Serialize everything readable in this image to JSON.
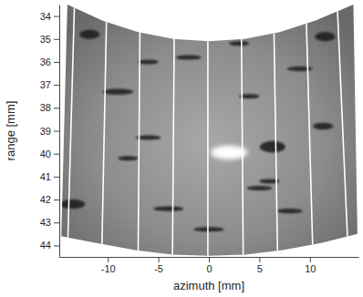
{
  "chart_data": {
    "type": "image",
    "xlabel": "azimuth [mm]",
    "ylabel": "range [mm]",
    "xlim": [
      -14.8,
      14.8
    ],
    "ylim": [
      33.5,
      44.5
    ],
    "xticks": [
      -10,
      -5,
      0,
      5,
      10
    ],
    "yticks": [
      34,
      35,
      36,
      37,
      38,
      39,
      40,
      41,
      42,
      43,
      44
    ],
    "sector": {
      "x": [
        -14.0,
        -10.5,
        -7.0,
        -3.5,
        0,
        3.5,
        7.0,
        10.5,
        14.3,
        14.7,
        11.0,
        7.3,
        3.6,
        0,
        -3.6,
        -7.3,
        -11.0,
        -14.6
      ],
      "y": [
        33.5,
        34.2,
        34.7,
        35.0,
        35.1,
        35.0,
        34.7,
        34.2,
        33.5,
        43.5,
        43.9,
        44.2,
        44.4,
        44.45,
        44.4,
        44.2,
        43.9,
        43.6
      ]
    },
    "beam_lines": {
      "x_top": [
        -13.3,
        -10.1,
        -6.8,
        -3.4,
        -0.1,
        3.2,
        6.4,
        9.6,
        12.7
      ],
      "x_bottom": [
        -14.0,
        -10.6,
        -7.0,
        -3.6,
        -0.1,
        3.4,
        6.8,
        10.3,
        13.8
      ]
    },
    "bright_spot": {
      "x": 2.0,
      "y": 39.95,
      "width": 3.6,
      "height": 0.6
    },
    "dark_spots": {
      "x": [
        -11.8,
        11.5,
        -9.0,
        6.3,
        11.3,
        -13.5,
        -6.0,
        -4.0,
        5.0,
        8.0,
        0.0,
        -8.0,
        9.0,
        4.0,
        -2.0,
        -6.0,
        3.0,
        6.0
      ],
      "y": [
        34.8,
        34.9,
        37.3,
        39.7,
        38.8,
        42.2,
        39.3,
        42.4,
        41.5,
        42.5,
        43.3,
        40.2,
        36.3,
        37.5,
        35.8,
        36.0,
        35.2,
        41.2
      ],
      "width": [
        2.0,
        2.0,
        3.0,
        2.5,
        2.0,
        2.5,
        2.5,
        3.0,
        2.5,
        2.5,
        3.0,
        2.0,
        2.5,
        2.0,
        2.5,
        2.0,
        2.0,
        2.0
      ],
      "height": [
        0.4,
        0.4,
        0.25,
        0.5,
        0.3,
        0.4,
        0.2,
        0.2,
        0.2,
        0.2,
        0.2,
        0.2,
        0.2,
        0.2,
        0.2,
        0.2,
        0.2,
        0.2
      ]
    }
  }
}
